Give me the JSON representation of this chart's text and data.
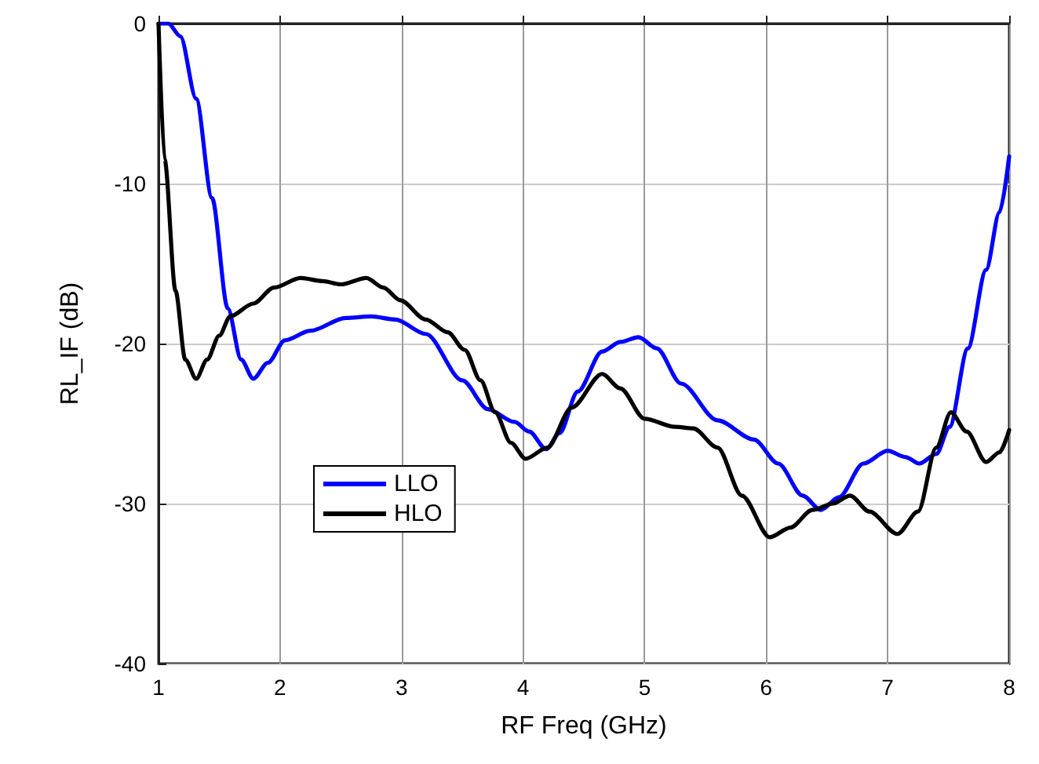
{
  "chart_data": {
    "type": "line",
    "xlabel": "RF Freq (GHz)",
    "ylabel": "RL_IF (dB)",
    "xlim": [
      1,
      8
    ],
    "ylim": [
      -40,
      0
    ],
    "xticks": [
      1,
      2,
      3,
      4,
      5,
      6,
      7,
      8
    ],
    "yticks": [
      -40,
      -30,
      -20,
      -10,
      0
    ],
    "grid": true,
    "legend": "bottom left",
    "marker": "none",
    "line_style": "solid",
    "series": [
      {
        "name": "LLO",
        "color": "#0000ff",
        "x": [
          1,
          1.08,
          1.18,
          1.31,
          1.44,
          1.57,
          1.68,
          1.78,
          1.9,
          2.04,
          2.25,
          2.54,
          2.75,
          2.95,
          3.2,
          3.5,
          3.71,
          3.93,
          4.05,
          4.19,
          4.3,
          4.45,
          4.65,
          4.8,
          4.95,
          5.1,
          5.3,
          5.6,
          5.9,
          6.1,
          6.3,
          6.45,
          6.6,
          6.8,
          7.0,
          7.15,
          7.26,
          7.4,
          7.51,
          7.66,
          7.81,
          7.92,
          8
        ],
        "values": [
          0,
          0,
          -0.8,
          -4.7,
          -10.9,
          -17.8,
          -21,
          -22.2,
          -21.2,
          -19.8,
          -19.2,
          -18.4,
          -18.3,
          -18.5,
          -19.4,
          -22.3,
          -24.1,
          -24.9,
          -25.5,
          -26.6,
          -25.6,
          -23,
          -20.5,
          -19.9,
          -19.6,
          -20.3,
          -22.5,
          -24.8,
          -26,
          -27.5,
          -29.5,
          -30.4,
          -29.6,
          -27.5,
          -26.7,
          -27.1,
          -27.5,
          -26.9,
          -25.2,
          -20.3,
          -15.4,
          -11.8,
          -8.3
        ]
      },
      {
        "name": "HLO",
        "color": "#000000",
        "x": [
          1,
          1.05,
          1.14,
          1.22,
          1.31,
          1.4,
          1.5,
          1.59,
          1.78,
          1.95,
          2.17,
          2.35,
          2.5,
          2.71,
          2.85,
          2.99,
          3.2,
          3.38,
          3.52,
          3.65,
          3.77,
          3.9,
          4.02,
          4.2,
          4.4,
          4.65,
          4.8,
          5.0,
          5.25,
          5.4,
          5.6,
          5.8,
          6.03,
          6.2,
          6.38,
          6.55,
          6.69,
          6.85,
          7.08,
          7.25,
          7.4,
          7.52,
          7.65,
          7.81,
          7.92,
          8
        ],
        "values": [
          0,
          -8.5,
          -16.7,
          -21,
          -22.2,
          -21,
          -19.5,
          -18.3,
          -17.5,
          -16.5,
          -15.9,
          -16.1,
          -16.3,
          -15.9,
          -16.5,
          -17.3,
          -18.5,
          -19.3,
          -20.4,
          -22.3,
          -24.3,
          -26.2,
          -27.2,
          -26.5,
          -24,
          -21.9,
          -22.8,
          -24.7,
          -25.2,
          -25.3,
          -26.5,
          -29.5,
          -32.1,
          -31.5,
          -30.4,
          -30,
          -29.5,
          -30.5,
          -31.9,
          -30.5,
          -26.5,
          -24.3,
          -25.5,
          -27.4,
          -26.8,
          -25.4
        ]
      }
    ]
  }
}
